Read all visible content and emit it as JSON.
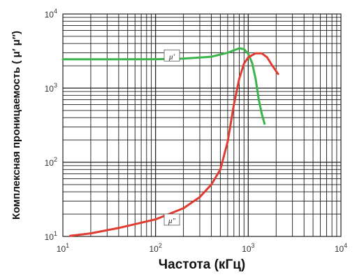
{
  "chart_data": {
    "type": "line",
    "title": "",
    "xlabel": "Частота (кГц)",
    "ylabel": "Комплексная проницаемость ( μ′  μ″)",
    "x_scale": "log",
    "y_scale": "log",
    "xlim": [
      10,
      10000
    ],
    "ylim": [
      10,
      10000
    ],
    "x_ticks": [
      {
        "value": 10,
        "base": "10",
        "exp": "1"
      },
      {
        "value": 100,
        "base": "10",
        "exp": "2"
      },
      {
        "value": 1000,
        "base": "10",
        "exp": "3"
      },
      {
        "value": 10000,
        "base": "10",
        "exp": "4"
      }
    ],
    "y_ticks": [
      {
        "value": 10,
        "base": "10",
        "exp": "1"
      },
      {
        "value": 100,
        "base": "10",
        "exp": "2"
      },
      {
        "value": 1000,
        "base": "10",
        "exp": "3"
      },
      {
        "value": 10000,
        "base": "10",
        "exp": "4"
      }
    ],
    "grid": true,
    "series": [
      {
        "name": "μ′",
        "color": "#3cb44b",
        "label_at": [
          150,
          2700
        ],
        "points": [
          [
            10,
            2450
          ],
          [
            30,
            2450
          ],
          [
            100,
            2460
          ],
          [
            200,
            2500
          ],
          [
            400,
            2650
          ],
          [
            600,
            3000
          ],
          [
            800,
            3450
          ],
          [
            900,
            3350
          ],
          [
            1000,
            2900
          ],
          [
            1100,
            2200
          ],
          [
            1200,
            1350
          ],
          [
            1300,
            700
          ],
          [
            1400,
            450
          ],
          [
            1500,
            330
          ]
        ]
      },
      {
        "name": "μ″",
        "color": "#e03c31",
        "label_at": [
          150,
          16.5
        ],
        "points": [
          [
            12,
            10.2
          ],
          [
            20,
            11
          ],
          [
            40,
            13
          ],
          [
            100,
            17
          ],
          [
            200,
            24
          ],
          [
            300,
            34
          ],
          [
            400,
            50
          ],
          [
            500,
            80
          ],
          [
            600,
            190
          ],
          [
            700,
            600
          ],
          [
            800,
            1350
          ],
          [
            900,
            2150
          ],
          [
            1000,
            2600
          ],
          [
            1200,
            2950
          ],
          [
            1400,
            2950
          ],
          [
            1600,
            2600
          ],
          [
            1800,
            2050
          ],
          [
            2100,
            1550
          ]
        ]
      }
    ]
  }
}
